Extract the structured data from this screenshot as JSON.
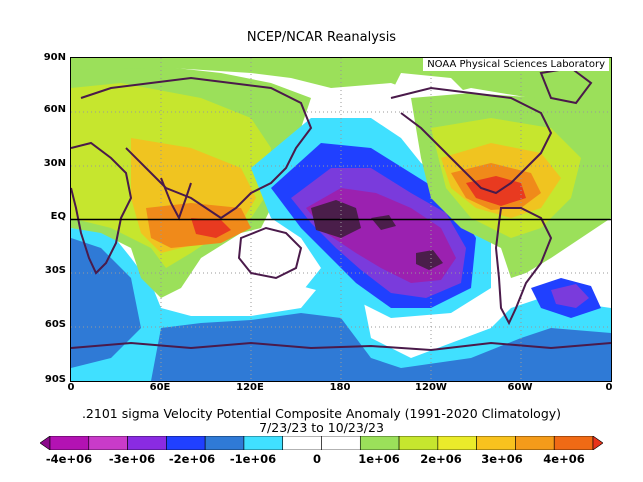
{
  "title": "NCEP/NCAR Reanalysis",
  "credit": "NOAA Physical Sciences Laboratory",
  "lat_labels": [
    "90N",
    "60N",
    "30N",
    "EQ",
    "30S",
    "60S",
    "90S"
  ],
  "lon_labels": [
    "0",
    "60E",
    "120E",
    "180",
    "120W",
    "60W",
    "0"
  ],
  "caption_line1": ".2101 sigma Velocity Potential  Composite Anomaly (1991-2020 Climatology)",
  "caption_line2": "7/23/23  to 10/23/23",
  "colorbar_labels": [
    "-4e+06",
    "-3e+06",
    "-2e+06",
    "-1e+06",
    "0",
    "1e+06",
    "2e+06",
    "3e+06",
    "4e+06"
  ],
  "colorbar_colors": [
    "#8b0a8b",
    "#b312b3",
    "#c93bc9",
    "#8a2be2",
    "#2040ff",
    "#2f7ad6",
    "#40e0ff",
    "#ffffff",
    "#ffffff",
    "#9be05a",
    "#c6e62e",
    "#eaeb2a",
    "#f8c21e",
    "#f49b1a",
    "#f06a15",
    "#e8331a"
  ],
  "map_colors": {
    "strong_negative": "#4a1e4a",
    "negative_3": "#9b21b0",
    "negative_2": "#7a3bdc",
    "negative_1": "#2b4bff",
    "negative_0": "#2f7ad6",
    "weak_negative": "#40e0ff",
    "neutral": "#ffffff",
    "weak_positive": "#9be05a",
    "positive_1": "#c6e62e",
    "positive_2": "#f0c420",
    "positive_3": "#f08a1a",
    "strong_positive": "#e83a20",
    "coastline": "#4a1a4a"
  }
}
